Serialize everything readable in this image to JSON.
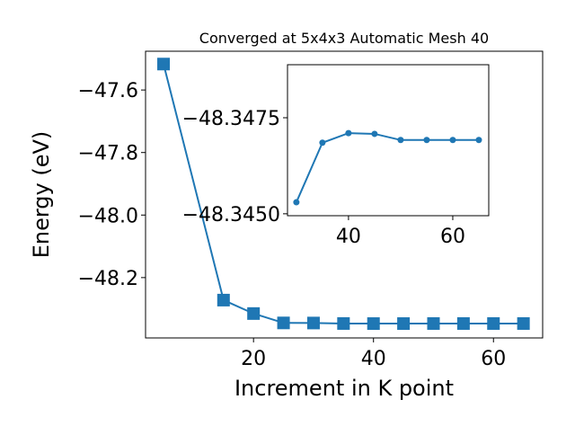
{
  "chart_data": [
    {
      "type": "line",
      "title": "Converged at 5x4x3 Automatic Mesh 40",
      "xlabel": "Increment in K point",
      "ylabel": "Energy (eV)",
      "marker": "square",
      "color": "#1f77b4",
      "x": [
        5,
        15,
        20,
        25,
        30,
        35,
        40,
        45,
        50,
        55,
        60,
        65
      ],
      "values": [
        -47.517,
        -48.272,
        -48.315,
        -48.345,
        -48.3453,
        -48.34685,
        -48.3471,
        -48.34708,
        -48.34692,
        -48.34692,
        -48.34692,
        -48.34692
      ],
      "xlim": [
        2,
        68.2
      ],
      "ylim": [
        -48.393,
        -47.476
      ],
      "xticks": [
        20,
        40,
        60
      ],
      "yticks": [
        {
          "value": -47.6,
          "label": "−47.6"
        },
        {
          "value": -47.8,
          "label": "−47.8"
        },
        {
          "value": -48.0,
          "label": "−48.0"
        },
        {
          "value": -48.2,
          "label": "−48.2"
        }
      ]
    },
    {
      "type": "line",
      "marker": "circle",
      "color": "#1f77b4",
      "x": [
        30,
        35,
        40,
        45,
        50,
        55,
        60,
        65
      ],
      "values": [
        -48.3453,
        -48.34685,
        -48.3471,
        -48.34708,
        -48.34692,
        -48.34692,
        -48.34692,
        -48.34692
      ],
      "xlim": [
        28.3,
        66.9
      ],
      "ylim": [
        -48.34495,
        -48.34888
      ],
      "xticks": [
        40,
        60
      ],
      "yticks": [
        {
          "value": -48.3475,
          "label": "−48.3475"
        },
        {
          "value": -48.345,
          "label": "−48.3450"
        }
      ]
    }
  ]
}
